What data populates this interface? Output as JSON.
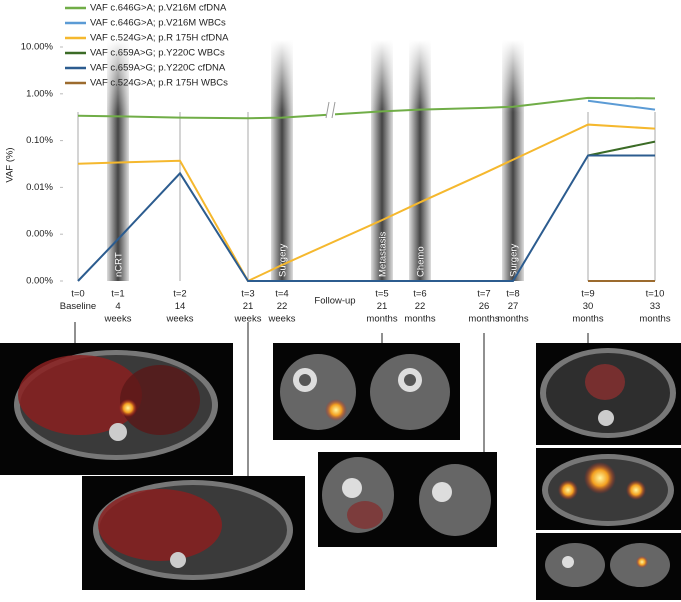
{
  "chart_data": {
    "type": "line",
    "y_label": "VAF (%)",
    "log_scale": true,
    "ylim": [
      0.0001,
      10
    ],
    "yticks": [
      {
        "value": 10,
        "label": "10.00%"
      },
      {
        "value": 1,
        "label": "1.00%"
      },
      {
        "value": 0.1,
        "label": "0.10%"
      },
      {
        "value": 0.01,
        "label": "0.01%"
      },
      {
        "value": 0.001,
        "label": "0.00%"
      },
      {
        "value": 0.0001,
        "label": "0.00%"
      }
    ],
    "categories": [
      [
        "t=0",
        "Baseline"
      ],
      [
        "t=1",
        "4",
        "weeks"
      ],
      [
        "t=2",
        "14",
        "weeks"
      ],
      [
        "t=3",
        "21",
        "weeks"
      ],
      [
        "t=4",
        "22",
        "weeks"
      ],
      [
        "t=5",
        "21",
        "months"
      ],
      [
        "t=6",
        "22",
        "months"
      ],
      [
        "t=7",
        "26",
        "months"
      ],
      [
        "t=8",
        "27",
        "months"
      ],
      [
        "t=9",
        "30",
        "months"
      ],
      [
        "t=10",
        "33",
        "months"
      ]
    ],
    "event_labels": [
      null,
      "nCRT",
      null,
      null,
      "Surgery",
      "Metastasis",
      "Chemo",
      null,
      "Surgery",
      null,
      null
    ],
    "x_annotation": "Follow-up",
    "series": [
      {
        "name": "VAF c.646G>A; p.V216M cfDNA",
        "color": "#70ad47",
        "values": [
          0.34,
          0.33,
          0.31,
          0.3,
          0.31,
          0.42,
          0.46,
          0.5,
          0.53,
          0.82,
          0.8
        ]
      },
      {
        "name": "VAF c.646G>A; p.V216M WBCs",
        "color": "#5b9bd5",
        "values": [
          null,
          null,
          null,
          null,
          null,
          null,
          null,
          null,
          null,
          0.71,
          0.46
        ]
      },
      {
        "name": "VAF c.524G>A; p.R 175H cfDNA",
        "color": "#f5b82e",
        "values": [
          0.032,
          0.034,
          0.037,
          0.0001,
          0.00022,
          0.002,
          0.0048,
          0.02,
          0.039,
          0.22,
          0.18
        ]
      },
      {
        "name": "VAF c.659A>G; p.Y220C WBCs",
        "color": "#3b6b26",
        "values": [
          null,
          null,
          null,
          null,
          null,
          null,
          null,
          null,
          null,
          0.048,
          0.095
        ]
      },
      {
        "name": "VAF c.659A>G; p.Y220C cfDNA",
        "color": "#2c5c8f",
        "values": [
          0.0001,
          0.00078,
          0.02,
          0.0001,
          0.0001,
          0.0001,
          0.0001,
          0.0001,
          0.0001,
          0.048,
          0.048
        ]
      },
      {
        "name": "VAF c.524G>A; p.R 175H WBCs",
        "color": "#9c6b2e",
        "values": [
          null,
          null,
          null,
          null,
          null,
          null,
          null,
          null,
          null,
          0.0001,
          0.0001
        ]
      }
    ]
  }
}
